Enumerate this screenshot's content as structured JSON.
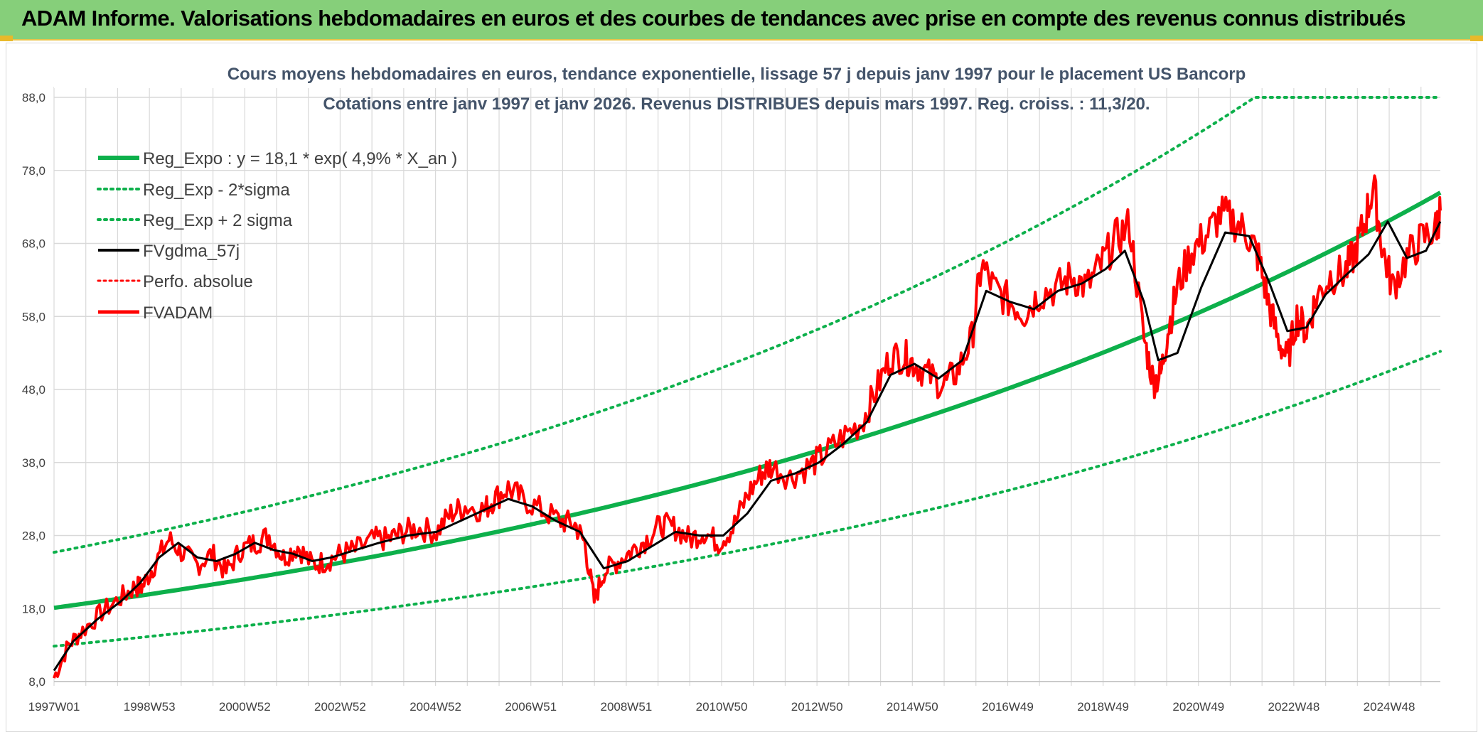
{
  "banner": {
    "title": "ADAM Informe. Valorisations hebdomadaires en euros et des courbes de tendances avec prise en compte des revenus connus distribués"
  },
  "colors": {
    "banner_bg": "#86cf7a",
    "trend": "#0db04b",
    "smooth": "#000000",
    "price": "#ff0000",
    "grid": "#d9d9d9"
  },
  "chart_data": {
    "type": "line",
    "title_line1": "Cours moyens hebdomadaires en euros, tendance exponentielle, lissage 57 j depuis janv 1997 pour le placement US Bancorp",
    "title_line2": "Cotations entre janv 1997 et janv 2026. Revenus DISTRIBUES depuis mars 1997. Reg. croiss. : 11,3/20.",
    "x_tick_labels": [
      "1997W01",
      "1998W53",
      "2000W52",
      "2002W52",
      "2004W52",
      "2006W51",
      "2008W51",
      "2010W50",
      "2012W50",
      "2014W50",
      "2016W49",
      "2018W49",
      "2020W49",
      "2022W48",
      "2024W48"
    ],
    "x_range_years": [
      1997.0,
      2026.0
    ],
    "y_ticks": [
      "8,0",
      "18,0",
      "28,0",
      "38,0",
      "48,0",
      "58,0",
      "68,0",
      "78,0",
      "88,0"
    ],
    "ylim": [
      8,
      88
    ],
    "legend": [
      {
        "label": "Reg_Expo : y = 18,1 * exp( 4,9% *  X_an )",
        "style": "solid",
        "color": "#0db04b"
      },
      {
        "label": "Reg_Exp - 2*sigma",
        "style": "dotted",
        "color": "#0db04b"
      },
      {
        "label": "Reg_Exp + 2 sigma",
        "style": "dotted",
        "color": "#0db04b"
      },
      {
        "label": "FVgdma_57j",
        "style": "solid",
        "color": "#000000"
      },
      {
        "label": "Perfo. absolue",
        "style": "dotted",
        "color": "#ff0000"
      },
      {
        "label": "FVADAM",
        "style": "solid",
        "color": "#ff0000"
      }
    ],
    "trend": {
      "a": 18.1,
      "rate": 0.049,
      "lower_factor": 0.71,
      "upper_factor": 1.42,
      "cap": 88.0
    },
    "series": [
      {
        "name": "FVADAM",
        "x": [
          1997.0,
          1997.3,
          1997.6,
          1998.0,
          1998.4,
          1998.7,
          1998.85,
          1999.1,
          1999.4,
          1999.7,
          2000.0,
          2000.3,
          2000.6,
          2000.9,
          2001.2,
          2001.5,
          2001.8,
          2002.1,
          2002.4,
          2002.7,
          2003.0,
          2003.3,
          2003.7,
          2004.0,
          2004.3,
          2004.6,
          2005.0,
          2005.3,
          2005.6,
          2006.0,
          2006.2,
          2006.5,
          2006.8,
          2007.2,
          2007.6,
          2007.9,
          2008.1,
          2008.3,
          2008.5,
          2008.8,
          2009.1,
          2009.4,
          2009.7,
          2010.0,
          2010.3,
          2010.6,
          2010.9,
          2011.2,
          2011.5,
          2011.8,
          2012.0,
          2012.4,
          2012.8,
          2013.1,
          2013.5,
          2013.9,
          2014.2,
          2014.5,
          2014.8,
          2015.0,
          2015.3,
          2015.6,
          2015.9,
          2016.2,
          2016.4,
          2016.7,
          2017.0,
          2017.3,
          2017.6,
          2018.0,
          2018.3,
          2018.6,
          2018.9,
          2019.2,
          2019.5,
          2019.8,
          2020.0,
          2020.15,
          2020.3,
          2020.5,
          2020.8,
          2021.1,
          2021.4,
          2021.7,
          2022.0,
          2022.2,
          2022.4,
          2022.6,
          2022.8,
          2023.0,
          2023.2,
          2023.4,
          2023.7,
          2024.0,
          2024.2,
          2024.4,
          2024.6,
          2024.8,
          2025.0,
          2025.3,
          2025.6,
          2025.9,
          2026.0
        ],
        "values": [
          8.5,
          13.0,
          15.0,
          17.5,
          19.5,
          21.0,
          21.0,
          24.0,
          27.5,
          25.5,
          24.0,
          25.5,
          23.0,
          26.0,
          27.0,
          28.0,
          25.0,
          26.5,
          24.0,
          24.5,
          25.5,
          26.0,
          27.5,
          27.5,
          28.5,
          29.0,
          28.5,
          31.0,
          32.0,
          31.5,
          33.0,
          34.5,
          33.0,
          31.5,
          30.0,
          29.5,
          27.0,
          19.0,
          23.0,
          24.5,
          26.0,
          27.5,
          29.5,
          29.0,
          27.5,
          28.5,
          27.0,
          29.0,
          33.5,
          36.5,
          37.5,
          36.0,
          37.5,
          39.0,
          41.5,
          43.5,
          48.0,
          52.5,
          52.5,
          51.5,
          50.0,
          48.5,
          50.5,
          55.0,
          65.0,
          61.5,
          60.0,
          58.5,
          61.0,
          62.0,
          63.5,
          62.0,
          65.0,
          68.5,
          70.5,
          55.0,
          49.0,
          50.0,
          56.0,
          62.0,
          67.0,
          69.0,
          72.0,
          71.0,
          69.0,
          66.0,
          60.0,
          55.0,
          52.0,
          58.0,
          56.0,
          60.5,
          63.5,
          64.0,
          66.5,
          70.5,
          76.0,
          67.0,
          62.0,
          66.0,
          68.5,
          70.0,
          72.5
        ]
      },
      {
        "name": "FVgdma_57j",
        "x": [
          1997.0,
          1997.4,
          1997.9,
          1998.4,
          1998.8,
          1999.2,
          1999.6,
          2000.0,
          2000.4,
          2000.8,
          2001.2,
          2001.6,
          2002.0,
          2002.4,
          2002.8,
          2003.3,
          2003.8,
          2004.4,
          2005.0,
          2005.5,
          2006.0,
          2006.5,
          2007.0,
          2007.5,
          2008.0,
          2008.5,
          2009.0,
          2009.5,
          2010.0,
          2010.5,
          2011.0,
          2011.5,
          2012.0,
          2012.5,
          2013.0,
          2013.5,
          2014.0,
          2014.5,
          2015.0,
          2015.5,
          2016.0,
          2016.5,
          2017.0,
          2017.5,
          2018.0,
          2018.5,
          2019.0,
          2019.4,
          2019.8,
          2020.1,
          2020.5,
          2021.0,
          2021.5,
          2022.0,
          2022.4,
          2022.8,
          2023.2,
          2023.6,
          2024.0,
          2024.5,
          2024.9,
          2025.3,
          2025.7,
          2026.0
        ],
        "values": [
          9.5,
          13.5,
          16.5,
          19.0,
          21.5,
          25.0,
          27.0,
          25.0,
          24.5,
          25.5,
          27.0,
          26.0,
          25.5,
          24.5,
          25.0,
          26.0,
          27.0,
          28.0,
          28.5,
          30.0,
          31.5,
          33.0,
          32.0,
          30.0,
          28.5,
          23.5,
          24.5,
          26.5,
          28.5,
          28.0,
          28.0,
          31.0,
          35.5,
          36.5,
          38.0,
          40.5,
          43.5,
          50.0,
          51.5,
          49.5,
          52.0,
          61.5,
          60.0,
          59.0,
          61.5,
          62.5,
          64.5,
          67.0,
          60.0,
          52.0,
          53.0,
          62.0,
          69.5,
          69.0,
          63.0,
          56.0,
          56.5,
          61.0,
          63.5,
          66.5,
          71.0,
          66.0,
          67.0,
          71.0
        ]
      }
    ]
  }
}
